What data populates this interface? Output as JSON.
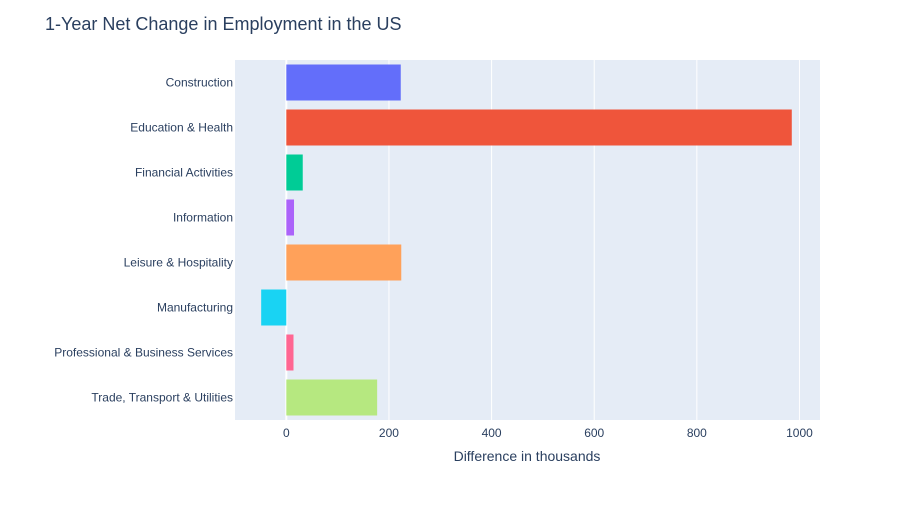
{
  "chart_data": {
    "type": "bar",
    "orientation": "horizontal",
    "title": "1-Year Net Change in Employment in the US",
    "xlabel": "Difference in thousands",
    "ylabel": "",
    "xlim": [
      -100,
      1040
    ],
    "xticks": [
      0,
      200,
      400,
      600,
      800,
      1000
    ],
    "grid": true,
    "legend": "none",
    "categories": [
      "Construction",
      "Education & Health",
      "Financial Activities",
      "Information",
      "Leisure & Hospitality",
      "Manufacturing",
      "Professional & Business Services",
      "Trade, Transport & Utilities"
    ],
    "values": [
      223,
      985,
      32,
      15,
      224,
      -49,
      14,
      177
    ],
    "colors": [
      "#636efa",
      "#ef553b",
      "#00cc96",
      "#ab63fa",
      "#ffa15a",
      "#19d3f3",
      "#ff6692",
      "#b6e880"
    ]
  },
  "style": {
    "plot_bg": "#e5ecf6",
    "grid_color": "#ffffff",
    "text_color": "#2a3f5f"
  }
}
